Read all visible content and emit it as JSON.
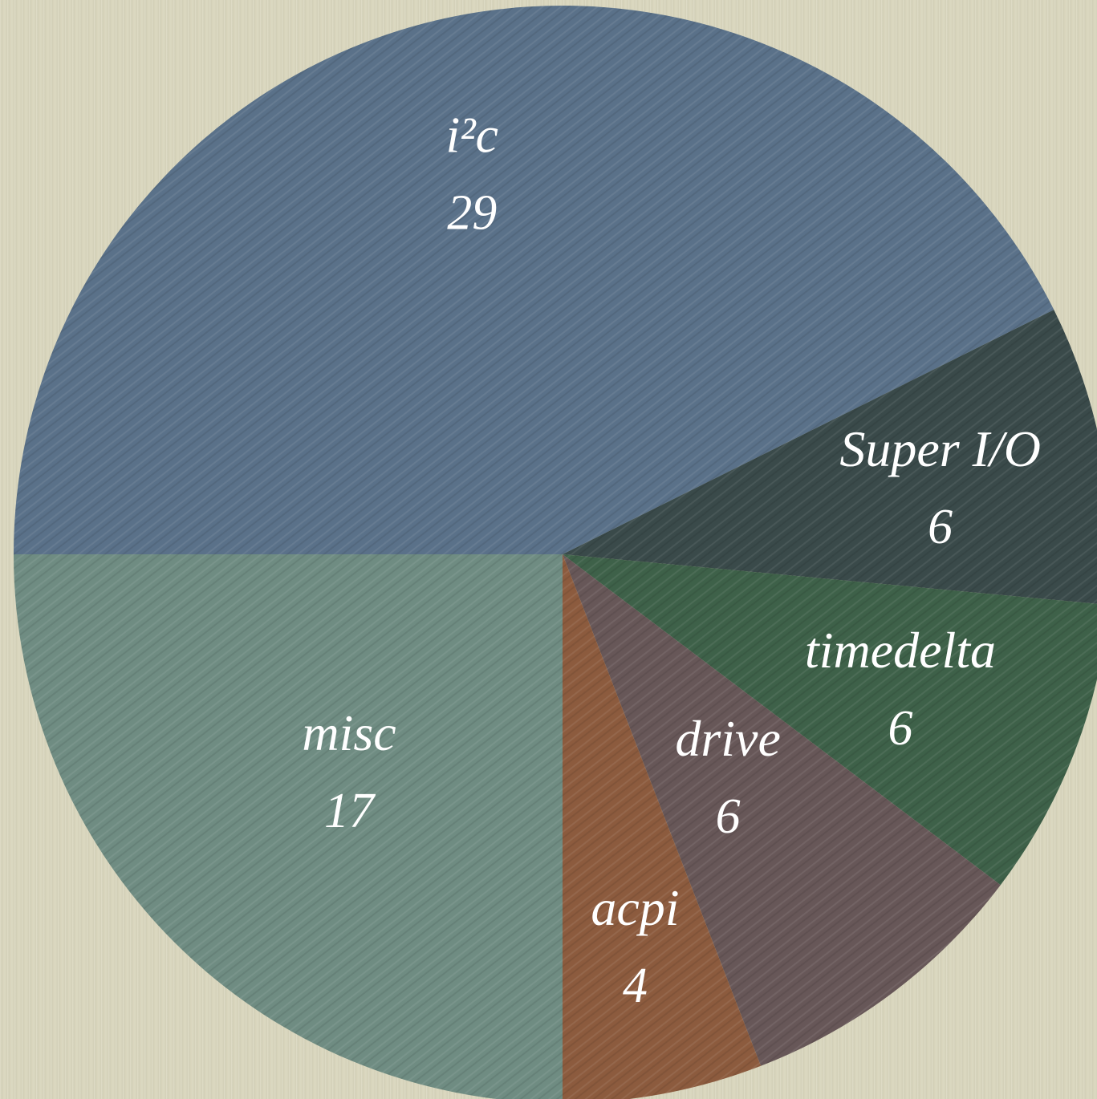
{
  "chart_data": {
    "type": "pie",
    "title": "",
    "slices": [
      {
        "label": "i²c",
        "value": 29,
        "color": "#5a7189"
      },
      {
        "label": "Super I/O",
        "value": 6,
        "color": "#3a4a4a"
      },
      {
        "label": "timedelta",
        "value": 6,
        "color": "#3e6149"
      },
      {
        "label": "drive",
        "value": 6,
        "color": "#675758"
      },
      {
        "label": "acpi",
        "value": 4,
        "color": "#8c5b3e"
      },
      {
        "label": "misc",
        "value": 17,
        "color": "#6f8c82"
      }
    ],
    "legend": "none",
    "labels_inside": true
  }
}
